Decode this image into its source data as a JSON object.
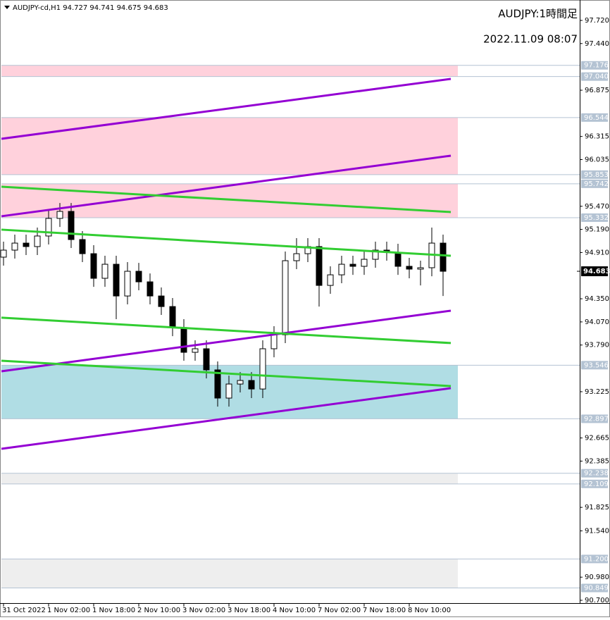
{
  "chart_data": {
    "type": "candlestick",
    "title": "AUDJPY:1時間足",
    "subtitle": "2022.11.09 08:07",
    "symbol_info": "AUDJPY-cd,H1  94.727 94.741 94.675 94.683",
    "xlim": [
      -0.75,
      204.5
    ],
    "ylim": [
      90.666,
      97.967
    ],
    "xticks": [
      {
        "value": 0,
        "label": "31 Oct 2022"
      },
      {
        "value": 16,
        "label": "1 Nov 02:00"
      },
      {
        "value": 32,
        "label": "1 Nov 18:00"
      },
      {
        "value": 48,
        "label": "2 Nov 10:00"
      },
      {
        "value": 64,
        "label": "3 Nov 02:00"
      },
      {
        "value": 80,
        "label": "3 Nov 18:00"
      },
      {
        "value": 96,
        "label": "4 Nov 10:00"
      },
      {
        "value": 112,
        "label": "7 Nov 02:00"
      },
      {
        "value": 128,
        "label": "7 Nov 18:00"
      },
      {
        "value": 144,
        "label": "8 Nov 10:00"
      }
    ],
    "yticks": [
      {
        "value": 97.72,
        "label": "97.720"
      },
      {
        "value": 97.44,
        "label": "97.440"
      },
      96.875,
      96.315,
      96.035,
      {
        "value": 95.47,
        "label": "95.470"
      },
      {
        "value": 95.19,
        "label": "95.190"
      },
      {
        "value": 94.91,
        "label": "94.910"
      },
      {
        "value": 94.35,
        "label": "94.350"
      },
      {
        "value": 94.07,
        "label": "94.070"
      },
      {
        "value": 93.79,
        "label": "93.790"
      },
      93.225,
      92.665,
      92.385,
      91.825,
      {
        "value": 91.54,
        "label": "91.540"
      },
      {
        "value": 90.98,
        "label": "90.980"
      },
      {
        "value": 90.7,
        "label": "90.700"
      }
    ],
    "levels": [
      97.176,
      {
        "value": 97.04,
        "label": "97.040"
      },
      96.544,
      95.853,
      95.742,
      95.332,
      93.546,
      92.897,
      92.238,
      92.109,
      {
        "value": 91.2,
        "label": "91.200"
      },
      90.849
    ],
    "current_price": 94.683,
    "zones": [
      {
        "from": 97.176,
        "to": 97.04,
        "color": "#ffd1dc"
      },
      {
        "from": 96.544,
        "to": 95.853,
        "color": "#ffd1dc"
      },
      {
        "from": 95.742,
        "to": 95.332,
        "color": "#ffd1dc"
      },
      {
        "from": 93.546,
        "to": 92.897,
        "color": "#b0dde4"
      },
      {
        "from": 92.238,
        "to": 92.109,
        "color": "#eeeeee"
      },
      {
        "from": 91.2,
        "to": 90.849,
        "color": "#eeeeee"
      }
    ],
    "trendlines": [
      {
        "color": "#9400d3",
        "x": [
          -0.75,
          158.75
        ],
        "y": [
          96.287,
          97.012
        ]
      },
      {
        "color": "#9400d3",
        "x": [
          -0.75,
          158.75
        ],
        "y": [
          95.349,
          96.082
        ]
      },
      {
        "color": "#9400d3",
        "x": [
          -0.75,
          158.75
        ],
        "y": [
          93.472,
          94.206
        ]
      },
      {
        "color": "#9400d3",
        "x": [
          -0.75,
          158.75
        ],
        "y": [
          92.534,
          93.268
        ]
      },
      {
        "color": "#32cd32",
        "x": [
          -0.75,
          158.75
        ],
        "y": [
          95.707,
          95.4
        ]
      },
      {
        "color": "#32cd32",
        "x": [
          -0.75,
          158.75
        ],
        "y": [
          95.187,
          94.871
        ]
      },
      {
        "color": "#32cd32",
        "x": [
          -0.75,
          158.75
        ],
        "y": [
          94.121,
          93.814
        ]
      },
      {
        "color": "#32cd32",
        "x": [
          -0.75,
          158.75
        ],
        "y": [
          93.6,
          93.293
        ]
      }
    ],
    "x": [
      0,
      4,
      8,
      12,
      16,
      20,
      24,
      28,
      32,
      36,
      40,
      44,
      48,
      52,
      56,
      60,
      64,
      68,
      72,
      76,
      80,
      84,
      88,
      92,
      96,
      100,
      104,
      108,
      112,
      116,
      120,
      124,
      128,
      132,
      136,
      140,
      144,
      148,
      152,
      156
    ],
    "open": [
      94.854,
      94.939,
      95.024,
      94.982,
      95.11,
      95.323,
      95.408,
      95.067,
      94.896,
      94.598,
      94.768,
      94.384,
      94.683,
      94.555,
      94.384,
      94.256,
      94.002,
      93.702,
      93.745,
      93.489,
      93.148,
      93.318,
      93.361,
      93.258,
      93.745,
      93.915,
      94.811,
      94.896,
      94.982,
      94.512,
      94.64,
      94.768,
      94.743,
      94.828,
      94.939,
      94.913,
      94.743,
      94.709,
      94.726,
      95.024
    ],
    "high": [
      95.041,
      95.127,
      95.127,
      95.212,
      95.425,
      95.51,
      95.51,
      95.169,
      94.999,
      94.871,
      94.871,
      94.794,
      94.785,
      94.657,
      94.487,
      94.359,
      94.103,
      93.847,
      93.847,
      93.591,
      93.42,
      93.463,
      93.463,
      93.847,
      94.018,
      94.922,
      95.084,
      95.084,
      95.084,
      94.743,
      94.871,
      94.871,
      94.93,
      95.041,
      95.041,
      95.016,
      94.845,
      94.811,
      95.212,
      95.127
    ],
    "low": [
      94.751,
      94.837,
      94.879,
      94.879,
      95.007,
      95.22,
      94.965,
      94.794,
      94.495,
      94.495,
      94.103,
      94.282,
      94.453,
      94.282,
      94.154,
      93.898,
      93.6,
      93.6,
      93.386,
      93.045,
      93.045,
      93.216,
      93.148,
      93.148,
      93.642,
      93.813,
      94.709,
      94.794,
      94.256,
      94.41,
      94.538,
      94.64,
      94.64,
      94.726,
      94.811,
      94.64,
      94.598,
      94.512,
      94.623,
      94.384
    ],
    "close": [
      94.939,
      95.024,
      94.982,
      95.11,
      95.323,
      95.408,
      95.067,
      94.896,
      94.598,
      94.768,
      94.384,
      94.683,
      94.555,
      94.384,
      94.256,
      94.002,
      93.702,
      93.745,
      93.489,
      93.148,
      93.318,
      93.361,
      93.258,
      93.745,
      93.915,
      94.811,
      94.896,
      94.982,
      94.512,
      94.64,
      94.768,
      94.743,
      94.828,
      94.939,
      94.913,
      94.743,
      94.709,
      94.726,
      95.024,
      94.683
    ]
  }
}
